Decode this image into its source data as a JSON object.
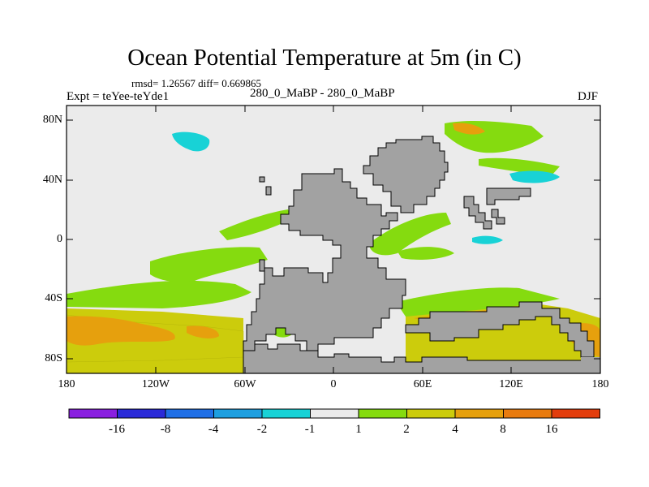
{
  "title": "Ocean Potential Temperature at 5m (in C)",
  "stats": "rmsd= 1.26567  diff= 0.669865",
  "expt_label": "Expt = teYee-teYde1",
  "subtitle": "280_0_MaBP - 280_0_MaBP",
  "season": "DJF",
  "y_axis_labels": [
    "80N",
    "40N",
    "0",
    "40S",
    "80S"
  ],
  "x_axis_labels": [
    "180",
    "120W",
    "60W",
    "0",
    "60E",
    "120E",
    "180"
  ],
  "colorbar": {
    "labels": [
      "-16",
      "-8",
      "-4",
      "-2",
      "-1",
      "1",
      "2",
      "4",
      "8",
      "16"
    ],
    "colors": [
      "#8a1fe0",
      "#2a2ad8",
      "#1f6fe6",
      "#1e9fe0",
      "#18d2d6",
      "#ebebeb",
      "#85db0f",
      "#cccc0c",
      "#e6a00d",
      "#e87b0f",
      "#e33d0c"
    ]
  },
  "colors": {
    "land": "#a2a2a2",
    "ocean": "#ebebeb",
    "anom_pos_small": "#85db0f",
    "anom_pos_mid": "#cccc0c",
    "anom_pos_high": "#e6a00d",
    "anom_neg": "#18d2d6"
  }
}
